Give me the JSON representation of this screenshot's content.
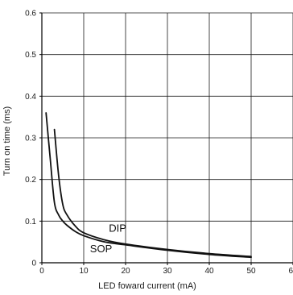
{
  "chart_data": {
    "type": "line",
    "title": "",
    "xlabel": "LED foward current (mA)",
    "ylabel": "Turn on time (ms)",
    "xlim": [
      0,
      60
    ],
    "ylim": [
      0,
      0.6
    ],
    "x_ticks": [
      "0",
      "10",
      "20",
      "30",
      "40",
      "50",
      "60"
    ],
    "y_ticks": [
      "0",
      "0.1",
      "0.2",
      "0.3",
      "0.4",
      "0.5",
      "0.6"
    ],
    "x_tick_values": [
      0,
      10,
      20,
      30,
      40,
      50,
      60
    ],
    "y_tick_values": [
      0,
      0.1,
      0.2,
      0.3,
      0.4,
      0.5,
      0.6
    ],
    "grid": true,
    "series": [
      {
        "name": "SOP",
        "x": [
          1,
          2,
          3,
          4,
          5,
          6,
          8,
          10,
          15,
          20,
          30,
          40,
          50
        ],
        "y": [
          0.36,
          0.25,
          0.145,
          0.115,
          0.1,
          0.09,
          0.075,
          0.065,
          0.05,
          0.043,
          0.03,
          0.02,
          0.013
        ]
      },
      {
        "name": "DIP",
        "x": [
          3,
          4,
          5,
          6,
          8,
          10,
          15,
          20,
          30,
          40,
          50
        ],
        "y": [
          0.32,
          0.21,
          0.14,
          0.115,
          0.088,
          0.072,
          0.055,
          0.045,
          0.032,
          0.022,
          0.015
        ]
      }
    ],
    "annotations": [
      {
        "text": "DIP",
        "x": 16,
        "y": 0.075
      },
      {
        "text": "SOP",
        "x": 11.5,
        "y": 0.025
      }
    ],
    "line_color": "#111111",
    "grid_color": "#1a1a1a"
  }
}
